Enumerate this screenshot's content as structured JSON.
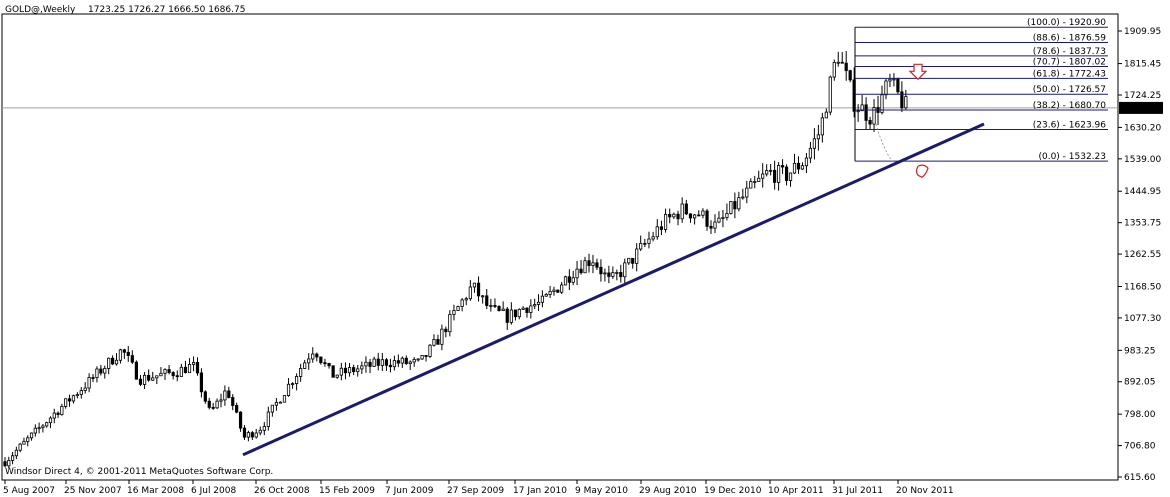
{
  "header": {
    "symbol": "GOLD@,Weekly",
    "ohlc": "1723.25 1726.27 1666.50 1686.75"
  },
  "footer": {
    "copyright": "Windsor Direct 4, © 2001-2011 MetaQuotes Software Corp."
  },
  "current_price_label": "1686.75",
  "chart_data": {
    "type": "candlestick",
    "price_ticks": [
      "1909.95",
      "1815.45",
      "1724.25",
      "1630.20",
      "1539.00",
      "1444.95",
      "1353.75",
      "1262.55",
      "1168.50",
      "1077.30",
      "983.25",
      "892.05",
      "798.00",
      "706.80",
      "615.60"
    ],
    "date_ticks": [
      "5 Aug 2007",
      "25 Nov 2007",
      "16 Mar 2008",
      "6 Jul 2008",
      "26 Oct 2008",
      "15 Feb 2009",
      "7 Jun 2009",
      "27 Sep 2009",
      "17 Jan 2010",
      "9 May 2010",
      "29 Aug 2010",
      "19 Dec 2010",
      "10 Apr 2011",
      "31 Jul 2011",
      "20 Nov 2011"
    ],
    "ylim": [
      615.6,
      1909.95
    ],
    "current_price": 1686.75,
    "fibonacci": [
      {
        "label": "(100.0) - 1920.90",
        "value": 1920.9
      },
      {
        "label": "(88.6) - 1876.59",
        "value": 1876.59
      },
      {
        "label": "(78.6) - 1837.73",
        "value": 1837.73
      },
      {
        "label": "(70.7) - 1807.02",
        "value": 1807.02
      },
      {
        "label": "(61.8) - 1772.43",
        "value": 1772.43
      },
      {
        "label": "(50.0) - 1726.57",
        "value": 1726.57
      },
      {
        "label": "(38.2) - 1680.70",
        "value": 1680.7
      },
      {
        "label": "(23.6) - 1623.96",
        "value": 1623.96
      },
      {
        "label": "(0.0) - 1532.23",
        "value": 1532.23
      }
    ],
    "trendline": {
      "start": {
        "date": "Oct 2008",
        "price": 680
      },
      "end": {
        "date": "Mar 2012",
        "price": 1640
      }
    },
    "series_anchors": [
      {
        "date": "Aug 2007",
        "price": 660
      },
      {
        "date": "Nov 2007",
        "price": 800
      },
      {
        "date": "Jan 2008",
        "price": 890
      },
      {
        "date": "Mar 2008",
        "price": 985
      },
      {
        "date": "Apr 2008",
        "price": 900
      },
      {
        "date": "Jun 2008",
        "price": 920
      },
      {
        "date": "Jul 2008",
        "price": 940
      },
      {
        "date": "Aug 2008",
        "price": 800
      },
      {
        "date": "Sep 2008",
        "price": 870
      },
      {
        "date": "Oct 2008",
        "price": 730
      },
      {
        "date": "Nov 2008",
        "price": 760
      },
      {
        "date": "Dec 2008",
        "price": 840
      },
      {
        "date": "Feb 2009",
        "price": 990
      },
      {
        "date": "Mar 2009",
        "price": 910
      },
      {
        "date": "Jun 2009",
        "price": 950
      },
      {
        "date": "Aug 2009",
        "price": 945
      },
      {
        "date": "Sep 2009",
        "price": 1010
      },
      {
        "date": "Nov 2009",
        "price": 1170
      },
      {
        "date": "Dec 2009",
        "price": 1100
      },
      {
        "date": "Jan 2010",
        "price": 1080
      },
      {
        "date": "Feb 2010",
        "price": 1110
      },
      {
        "date": "Mar 2010",
        "price": 1120
      },
      {
        "date": "May 2010",
        "price": 1220
      },
      {
        "date": "Jun 2010",
        "price": 1250
      },
      {
        "date": "Jul 2010",
        "price": 1180
      },
      {
        "date": "Aug 2010",
        "price": 1230
      },
      {
        "date": "Oct 2010",
        "price": 1350
      },
      {
        "date": "Nov 2010",
        "price": 1390
      },
      {
        "date": "Dec 2010",
        "price": 1380
      },
      {
        "date": "Jan 2011",
        "price": 1340
      },
      {
        "date": "Feb 2011",
        "price": 1400
      },
      {
        "date": "Apr 2011",
        "price": 1500
      },
      {
        "date": "May 2011",
        "price": 1490
      },
      {
        "date": "Jun 2011",
        "price": 1530
      },
      {
        "date": "Jul 2011",
        "price": 1620
      },
      {
        "date": "Aug 2011",
        "price": 1850
      },
      {
        "date": "Sep 2011",
        "price": 1700
      },
      {
        "date": "Oct 2011",
        "price": 1660
      },
      {
        "date": "Nov 2011",
        "price": 1760
      },
      {
        "date": "Dec 2011",
        "price": 1686
      }
    ]
  }
}
